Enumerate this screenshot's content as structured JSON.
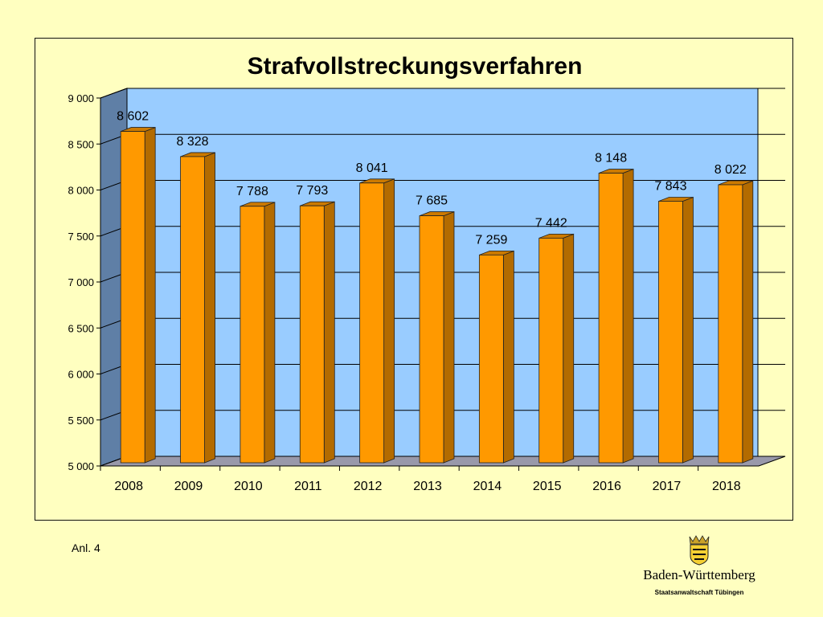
{
  "chart_data": {
    "type": "bar",
    "title": "Strafvollstreckungsverfahren",
    "categories": [
      "2008",
      "2009",
      "2010",
      "2011",
      "2012",
      "2013",
      "2014",
      "2015",
      "2016",
      "2017",
      "2018"
    ],
    "values": [
      8602,
      8328,
      7788,
      7793,
      8041,
      7685,
      7259,
      7442,
      8148,
      7843,
      8022
    ],
    "value_labels": [
      "8 602",
      "8 328",
      "7 788",
      "7 793",
      "8 041",
      "7 685",
      "7 259",
      "7 442",
      "8 148",
      "7 843",
      "8 022"
    ],
    "yticks": [
      5000,
      5500,
      6000,
      6500,
      7000,
      7500,
      8000,
      8500,
      9000
    ],
    "ytick_labels": [
      "5 000",
      "5 500",
      "6 000",
      "6 500",
      "7 000",
      "7 500",
      "8 000",
      "8 500",
      "9 000"
    ],
    "ylim": [
      5000,
      9000
    ],
    "grid": true,
    "legend": "none",
    "colors": {
      "bar_front": "#ff9900",
      "bar_side": "#b36b00",
      "bar_top": "#cc7a00",
      "back_wall": "#99ccff",
      "side_wall": "#5f7fa6",
      "floor": "#9999aa"
    }
  },
  "footnote": "Anl. 4",
  "logo": {
    "name": "Baden-Württemberg",
    "subtitle": "Staatsanwaltschaft Tübingen"
  }
}
